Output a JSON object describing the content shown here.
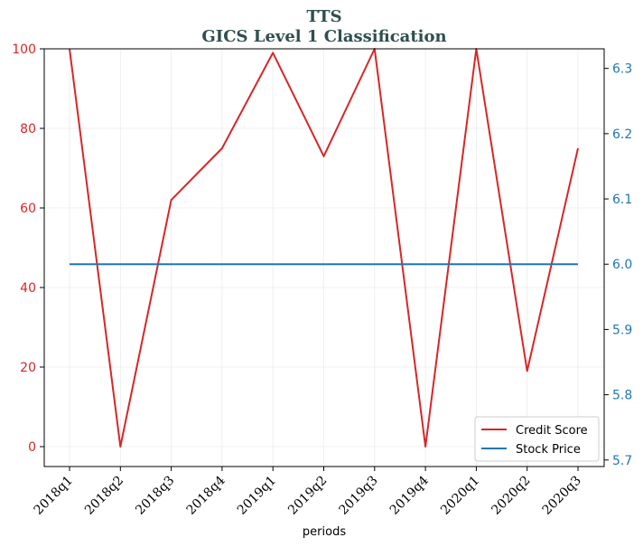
{
  "chart_data": {
    "type": "line",
    "title": [
      "TTS",
      "GICS Level 1 Classification"
    ],
    "xlabel": "periods",
    "categories": [
      "2018q1",
      "2018q2",
      "2018q3",
      "2018q4",
      "2019q1",
      "2019q2",
      "2019q3",
      "2019q4",
      "2020q1",
      "2020q2",
      "2020q3"
    ],
    "left_axis": {
      "ylim": [
        -5,
        100
      ],
      "ticks": [
        "0",
        "20",
        "40",
        "60",
        "80",
        "100"
      ],
      "tick_values": [
        0,
        20,
        40,
        60,
        80,
        100
      ]
    },
    "right_axis": {
      "ylim": [
        5.69,
        6.33
      ],
      "ticks": [
        "5.7",
        "5.8",
        "5.9",
        "6.0",
        "6.1",
        "6.2",
        "6.3"
      ],
      "tick_values": [
        5.7,
        5.8,
        5.9,
        6.0,
        6.1,
        6.2,
        6.3
      ]
    },
    "grid": true,
    "legend_position": "bottom-right",
    "series": [
      {
        "name": "Credit Score",
        "axis": "left",
        "color": "#d62728",
        "values": [
          100,
          0,
          62,
          75,
          99,
          73,
          100,
          0,
          100,
          19,
          75
        ]
      },
      {
        "name": "Stock Price",
        "axis": "right",
        "color": "#1f77b4",
        "values": [
          6.0,
          6.0,
          6.0,
          6.0,
          6.0,
          6.0,
          6.0,
          6.0,
          6.0,
          6.0,
          6.0
        ]
      }
    ]
  }
}
